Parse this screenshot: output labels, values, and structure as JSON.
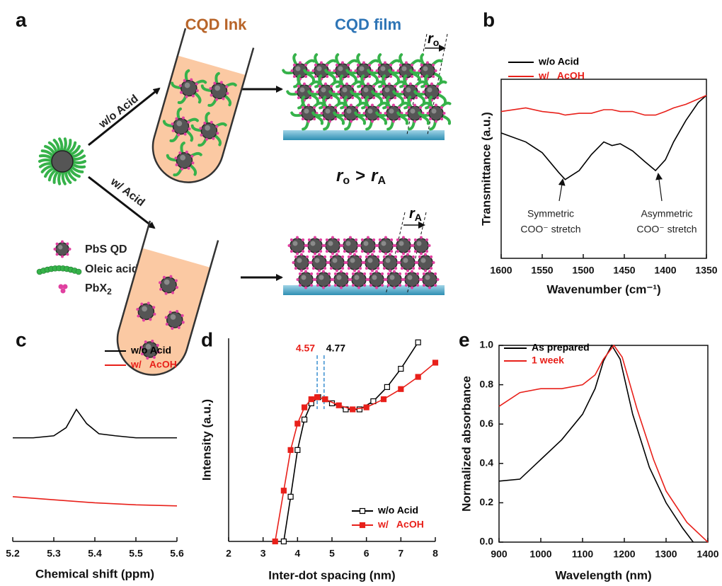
{
  "diagram": {
    "panel": "a",
    "ink_title": "CQD Ink",
    "film_title": "CQD film",
    "route_without": "w/o Acid",
    "route_with": "w/ Acid",
    "spacing_without": {
      "base": "r",
      "sub": "o"
    },
    "spacing_with": {
      "base": "r",
      "sub": "A"
    },
    "inequality": {
      "left": {
        "base": "r",
        "sub": "o"
      },
      "op": ">",
      "right": {
        "base": "r",
        "sub": "A"
      }
    },
    "legend": {
      "qd": "PbS QD",
      "ligand": "Oleic acid",
      "salt": {
        "base": "PbX",
        "sub": "2"
      }
    }
  },
  "chart_data": [
    {
      "panel": "b",
      "type": "line",
      "xlabel": "Wavenumber (cm⁻¹)",
      "ylabel": "Transmittance (a.u.)",
      "x": [
        1600,
        1570,
        1550,
        1530,
        1522,
        1505,
        1490,
        1475,
        1465,
        1455,
        1440,
        1425,
        1412,
        1400,
        1390,
        1375,
        1360,
        1350
      ],
      "xlim": [
        1600,
        1350
      ],
      "xticks": [
        1600,
        1550,
        1500,
        1450,
        1400,
        1350
      ],
      "ylim": [
        0,
        1
      ],
      "legend": "upper left",
      "series": [
        {
          "name": "w/o Acid",
          "color": "#000000",
          "values": [
            0.7,
            0.65,
            0.59,
            0.48,
            0.44,
            0.49,
            0.58,
            0.65,
            0.63,
            0.64,
            0.6,
            0.54,
            0.49,
            0.55,
            0.65,
            0.77,
            0.87,
            0.91
          ]
        },
        {
          "name": "w/   AcOH",
          "color": "#e8201a",
          "values": [
            0.82,
            0.84,
            0.82,
            0.81,
            0.8,
            0.81,
            0.81,
            0.83,
            0.83,
            0.82,
            0.82,
            0.8,
            0.8,
            0.82,
            0.84,
            0.86,
            0.89,
            0.91
          ]
        }
      ],
      "annotations": [
        {
          "lines": [
            "Symmetric",
            "COO⁻ stretch"
          ]
        },
        {
          "lines": [
            "Asymmetric",
            "COO⁻ stretch"
          ]
        }
      ]
    },
    {
      "panel": "c",
      "type": "line",
      "xlabel": "Chemical shift (ppm)",
      "xlim": [
        5.2,
        5.6
      ],
      "xticks": [
        5.2,
        5.3,
        5.4,
        5.5,
        5.6
      ],
      "ylim": [
        0,
        1
      ],
      "legend": "upper right",
      "series": [
        {
          "name": "w/o Acid",
          "color": "#000000",
          "x": [
            5.2,
            5.25,
            5.3,
            5.33,
            5.355,
            5.38,
            5.41,
            5.45,
            5.5,
            5.55,
            5.6
          ],
          "values": [
            0.51,
            0.51,
            0.52,
            0.56,
            0.65,
            0.58,
            0.53,
            0.52,
            0.51,
            0.51,
            0.51
          ]
        },
        {
          "name": "w/   AcOH",
          "color": "#e8201a",
          "x": [
            5.2,
            5.3,
            5.4,
            5.5,
            5.6
          ],
          "values": [
            0.22,
            0.205,
            0.19,
            0.18,
            0.175
          ]
        }
      ]
    },
    {
      "panel": "d",
      "type": "line",
      "xlabel": "Inter-dot spacing (nm)",
      "ylabel": "Intensity (a.u.)",
      "xlim": [
        2,
        8
      ],
      "xticks": [
        2,
        3,
        4,
        5,
        6,
        7,
        8
      ],
      "ylim": [
        0,
        1
      ],
      "legend": "lower right",
      "series": [
        {
          "name": "w/o Acid",
          "color": "#000000",
          "marker": "open-square",
          "x": [
            3.6,
            3.8,
            4.0,
            4.2,
            4.4,
            4.6,
            4.8,
            5.0,
            5.4,
            5.8,
            6.2,
            6.6,
            7.0,
            7.5
          ],
          "values": [
            0,
            0.22,
            0.45,
            0.6,
            0.68,
            0.71,
            0.7,
            0.68,
            0.65,
            0.65,
            0.69,
            0.76,
            0.85,
            0.98
          ]
        },
        {
          "name": "w/   AcOH",
          "color": "#e8201a",
          "marker": "filled-square",
          "x": [
            3.35,
            3.6,
            3.8,
            4.0,
            4.2,
            4.4,
            4.57,
            4.8,
            5.2,
            5.6,
            6.0,
            6.5,
            7.0,
            7.5,
            8.0
          ],
          "values": [
            0,
            0.25,
            0.45,
            0.58,
            0.66,
            0.7,
            0.71,
            0.7,
            0.67,
            0.65,
            0.66,
            0.7,
            0.75,
            0.81,
            0.88
          ]
        }
      ],
      "vlines": [
        {
          "value": 4.57,
          "color": "#e8201a"
        },
        {
          "value": 4.77,
          "color": "#000000"
        }
      ]
    },
    {
      "panel": "e",
      "type": "line",
      "xlabel": "Wavelength (nm)",
      "ylabel": "Normalized absorbance",
      "xlim": [
        900,
        1400
      ],
      "xticks": [
        900,
        1000,
        1100,
        1200,
        1300,
        1400
      ],
      "ylim": [
        0,
        1
      ],
      "yticks": [
        {
          "value": 0,
          "label": "0.0"
        },
        0.2,
        0.4,
        0.6,
        0.8,
        {
          "value": 1,
          "label": "1.0"
        }
      ],
      "legend": "upper left",
      "series": [
        {
          "name": "As prepared",
          "color": "#000000",
          "x": [
            900,
            950,
            1000,
            1050,
            1100,
            1130,
            1150,
            1170,
            1190,
            1220,
            1260,
            1300,
            1340,
            1365
          ],
          "values": [
            0.31,
            0.32,
            0.42,
            0.52,
            0.65,
            0.78,
            0.92,
            1.0,
            0.93,
            0.65,
            0.38,
            0.2,
            0.07,
            0
          ]
        },
        {
          "name": "1 week",
          "color": "#e8201a",
          "x": [
            900,
            950,
            1000,
            1050,
            1100,
            1130,
            1150,
            1175,
            1195,
            1230,
            1270,
            1300,
            1350,
            1400
          ],
          "values": [
            0.69,
            0.76,
            0.78,
            0.78,
            0.8,
            0.85,
            0.93,
            1.0,
            0.94,
            0.68,
            0.42,
            0.26,
            0.1,
            0
          ]
        }
      ]
    }
  ]
}
